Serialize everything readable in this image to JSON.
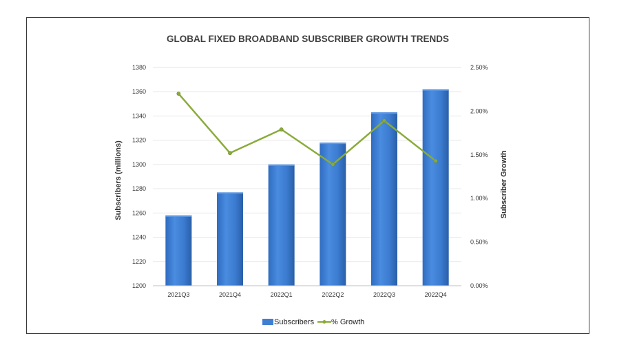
{
  "chart_data": {
    "type": "bar",
    "title": "GLOBAL FIXED BROADBAND SUBSCRIBER GROWTH TRENDS",
    "categories": [
      "2021Q3",
      "2021Q4",
      "2022Q1",
      "2022Q2",
      "2022Q3",
      "2022Q4"
    ],
    "series": [
      {
        "name": "Subscribers",
        "type": "bar",
        "axis": "left",
        "values": [
          1258,
          1277,
          1300,
          1318,
          1343,
          1362
        ]
      },
      {
        "name": "% Growth",
        "type": "line",
        "axis": "right",
        "values": [
          2.2,
          1.52,
          1.79,
          1.39,
          1.89,
          1.43
        ]
      }
    ],
    "ylabel": "Subscribers (millions)",
    "y2label": "Subscriber Growth",
    "ylim": [
      1200,
      1380
    ],
    "y2lim": [
      0,
      2.5
    ],
    "y_ticks": [
      "1200",
      "1220",
      "1240",
      "1260",
      "1280",
      "1300",
      "1320",
      "1340",
      "1360",
      "1380"
    ],
    "y2_ticks": [
      "0.00%",
      "0.50%",
      "1.00%",
      "1.50%",
      "2.00%",
      "2.50%"
    ],
    "grid": true,
    "legend_position": "bottom",
    "colors": {
      "bar": "#3f7fd1",
      "bar_dark": "#2a5fa8",
      "line": "#8aab3a",
      "grid": "#e6e6e6",
      "frame": "#3a3a3a"
    }
  }
}
